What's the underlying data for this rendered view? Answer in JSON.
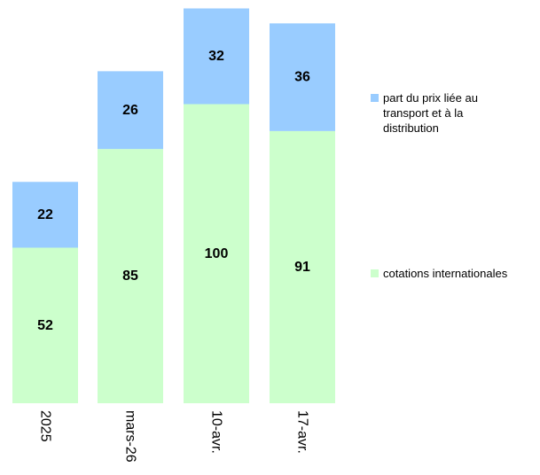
{
  "chart_data": {
    "type": "bar",
    "stacked": true,
    "categories": [
      "2025",
      "mars-26",
      "10-avr.",
      "17-avr."
    ],
    "series": [
      {
        "name": "cotations internationales",
        "color": "#ccffcc",
        "values": [
          52,
          85,
          100,
          91
        ]
      },
      {
        "name": "part du prix liée au transport et à la distribution",
        "color": "#99ccff",
        "values": [
          22,
          26,
          32,
          36
        ]
      }
    ],
    "title": "",
    "xlabel": "",
    "ylabel": "",
    "ylim": [
      0,
      132
    ],
    "grid": false,
    "legend_position": "right"
  }
}
